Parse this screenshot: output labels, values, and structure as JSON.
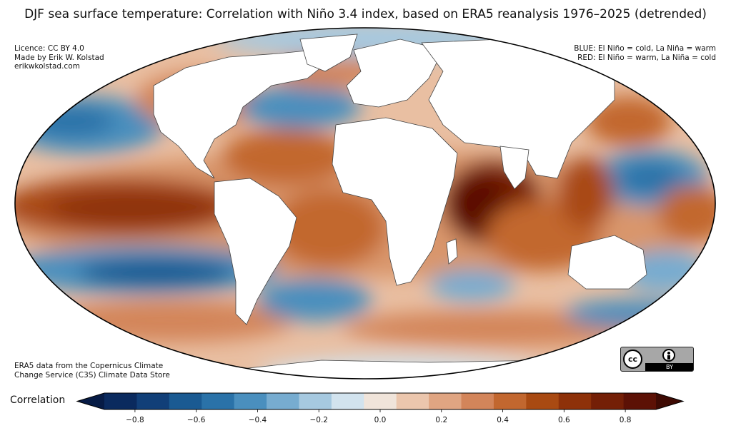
{
  "title": "DJF sea surface temperature: Correlation with Niño 3.4 index, based on ERA5 reanalysis 1976–2025 (detrended)",
  "credits": {
    "lines": [
      "Licence: CC BY 4.0",
      "Made by Erik W. Kolstad",
      "erikwkolstad.com"
    ]
  },
  "legend_text": {
    "lines": [
      "BLUE: El Niño = cold, La Niña = warm",
      "RED: El Niño = warm, La Niña = cold"
    ]
  },
  "source": {
    "lines": [
      "ERA5 data from the Copernicus Climate",
      "Change Service (C3S) Climate Data Store"
    ]
  },
  "license_badge": {
    "cc": "cc",
    "by": "BY"
  },
  "colorbar": {
    "label": "Correlation",
    "bounds": [
      -0.9,
      0.9
    ],
    "step": 0.1,
    "ticks": [
      "−0.8",
      "−0.6",
      "−0.4",
      "−0.2",
      "0.0",
      "0.2",
      "0.4",
      "0.6",
      "0.8"
    ],
    "tick_values": [
      -0.8,
      -0.6,
      -0.4,
      -0.2,
      0.0,
      0.2,
      0.4,
      0.6,
      0.8
    ],
    "colors": [
      "#0a2a5e",
      "#113f78",
      "#1a5a92",
      "#2a72a8",
      "#4a8fbe",
      "#77acd0",
      "#a6c9e0",
      "#d2e3ee",
      "#f0e4da",
      "#ebc6ad",
      "#e0a582",
      "#d3855a",
      "#c2672f",
      "#a94a12",
      "#8e3109",
      "#741f06",
      "#5c1105"
    ],
    "under_color": "#061b45",
    "over_color": "#3e0a03"
  },
  "map": {
    "projection": "Mollweide",
    "ocean_regions": [
      {
        "name": "central-east-pacific",
        "r": 0.7
      },
      {
        "name": "north-pacific-west",
        "r": -0.5
      },
      {
        "name": "south-pacific-band",
        "r": -0.7
      },
      {
        "name": "north-atlantic-tropics",
        "r": 0.5
      },
      {
        "name": "north-atlantic-midlat",
        "r": -0.4
      },
      {
        "name": "south-atlantic",
        "r": -0.4
      },
      {
        "name": "indian-ocean-west",
        "r": 0.9
      },
      {
        "name": "indian-ocean-east",
        "r": 0.5
      },
      {
        "name": "western-pacific-warm-pool",
        "r": -0.5
      },
      {
        "name": "southern-ocean-indian",
        "r": -0.3
      },
      {
        "name": "maritime-continent",
        "r": 0.6
      }
    ]
  }
}
